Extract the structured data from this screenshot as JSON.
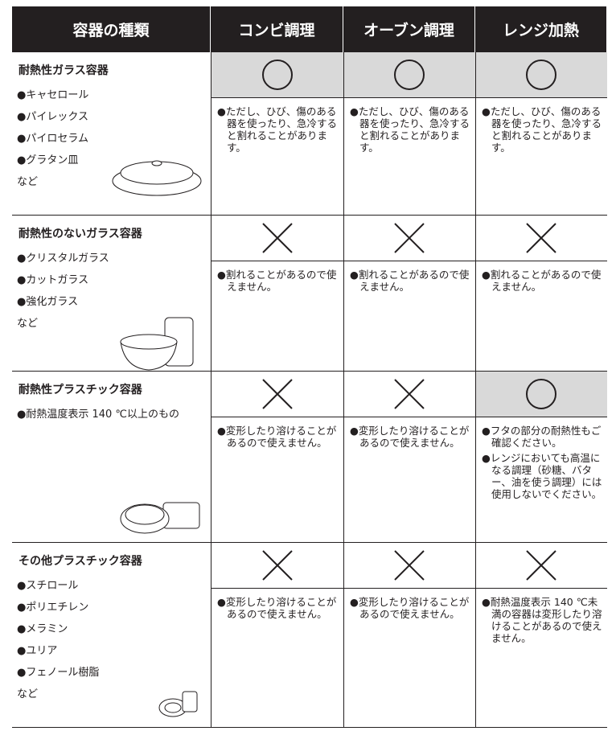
{
  "header": [
    "容器の種類",
    "コンビ調理",
    "オーブン調理",
    "レンジ加熱"
  ],
  "rows": [
    {
      "title": "耐熱性ガラス容器",
      "items": [
        "●キャセロール",
        "●パイレックス",
        "●パイロセラム",
        "●グラタン皿",
        "など"
      ],
      "cells": [
        {
          "ok": true,
          "notes": [
            "●ただし、ひび、傷のある器を使ったり、急冷すると割れることがあります。"
          ]
        },
        {
          "ok": true,
          "notes": [
            "●ただし、ひび、傷のある器を使ったり、急冷すると割れることがあります。"
          ]
        },
        {
          "ok": true,
          "notes": [
            "●ただし、ひび、傷のある器を使ったり、急冷すると割れることがあります。"
          ]
        }
      ]
    },
    {
      "title": "耐熱性のないガラス容器",
      "items": [
        "●クリスタルガラス",
        "●カットガラス",
        "●強化ガラス",
        "など"
      ],
      "cells": [
        {
          "ok": false,
          "notes": [
            "●割れることがあるので使えません。"
          ]
        },
        {
          "ok": false,
          "notes": [
            "●割れることがあるので使えません。"
          ]
        },
        {
          "ok": false,
          "notes": [
            "●割れることがあるので使えません。"
          ]
        }
      ]
    },
    {
      "title": "耐熱性プラスチック容器",
      "items": [
        "●耐熱温度表示 140 ℃以上のもの"
      ],
      "cells": [
        {
          "ok": false,
          "notes": [
            "●変形したり溶けることがあるので使えません。"
          ]
        },
        {
          "ok": false,
          "notes": [
            "●変形したり溶けることがあるので使えません。"
          ]
        },
        {
          "ok": true,
          "notes": [
            "●フタの部分の耐熱性もご確認ください。",
            "●レンジにおいても高温になる調理（砂糖、バター、油を使う調理）には使用しないでください。"
          ]
        }
      ]
    },
    {
      "title": "その他プラスチック容器",
      "items": [
        "●スチロール",
        "●ポリエチレン",
        "●メラミン",
        "●ユリア",
        "●フェノール樹脂",
        "など"
      ],
      "cells": [
        {
          "ok": false,
          "notes": [
            "●変形したり溶けることがあるので使えません。"
          ]
        },
        {
          "ok": false,
          "notes": [
            "●変形したり溶けることがあるので使えません。"
          ]
        },
        {
          "ok": false,
          "notes": [
            "●耐熱温度表示 140 ℃未満の容器は変形したり溶けることがあるので使えません。"
          ]
        }
      ]
    }
  ]
}
